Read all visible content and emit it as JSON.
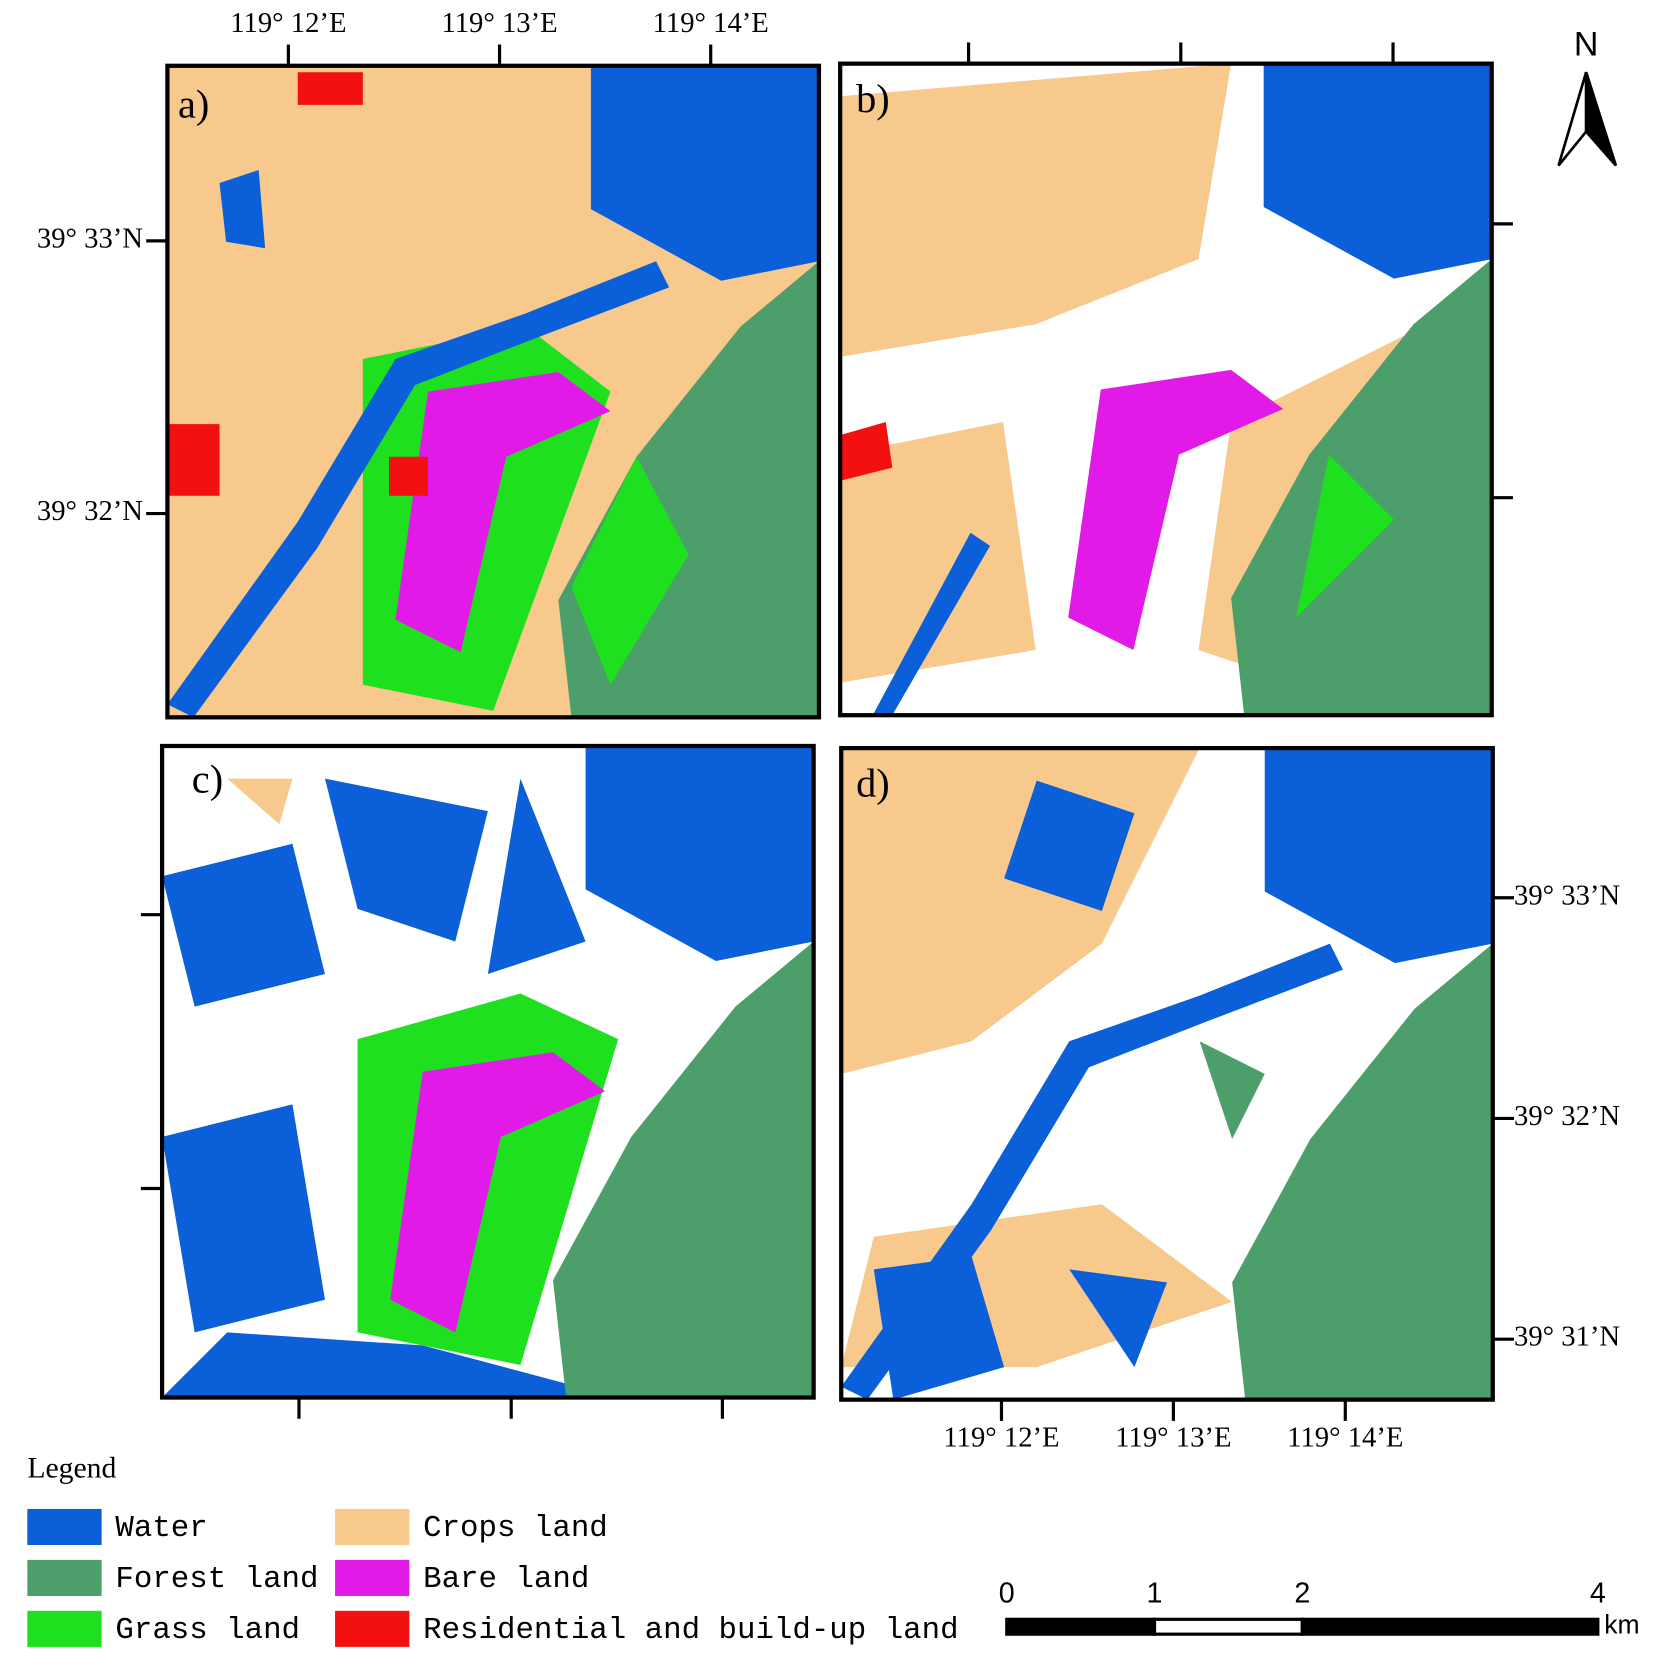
{
  "north_label": "N",
  "panels": [
    {
      "label": "a)"
    },
    {
      "label": "b)"
    },
    {
      "label": "c)"
    },
    {
      "label": "d)"
    }
  ],
  "top_axis_labels": [
    "119° 12’E",
    "119° 13’E",
    "119° 14’E"
  ],
  "left_axis_labels": [
    "39° 33’N",
    "39° 32’N"
  ],
  "bottom_axis_labels": [
    "119° 12’E",
    "119° 13’E",
    "119° 14’E"
  ],
  "right_axis_labels": [
    "39° 33’N",
    "39° 32’N",
    "39° 31’N"
  ],
  "legend": {
    "title": "Legend",
    "items": [
      {
        "name": "Water",
        "color": "#0b5fd8"
      },
      {
        "name": "Forest land",
        "color": "#4c9e6a"
      },
      {
        "name": "Grass land",
        "color": "#1fe01f"
      },
      {
        "name": "Crops land",
        "color": "#f7c98c"
      },
      {
        "name": "Bare land",
        "color": "#e21ae8"
      },
      {
        "name": "Residential and build-up land",
        "color": "#f21010"
      }
    ]
  },
  "scale_bar": {
    "ticks": [
      0,
      1,
      2,
      4
    ],
    "unit": "km"
  }
}
